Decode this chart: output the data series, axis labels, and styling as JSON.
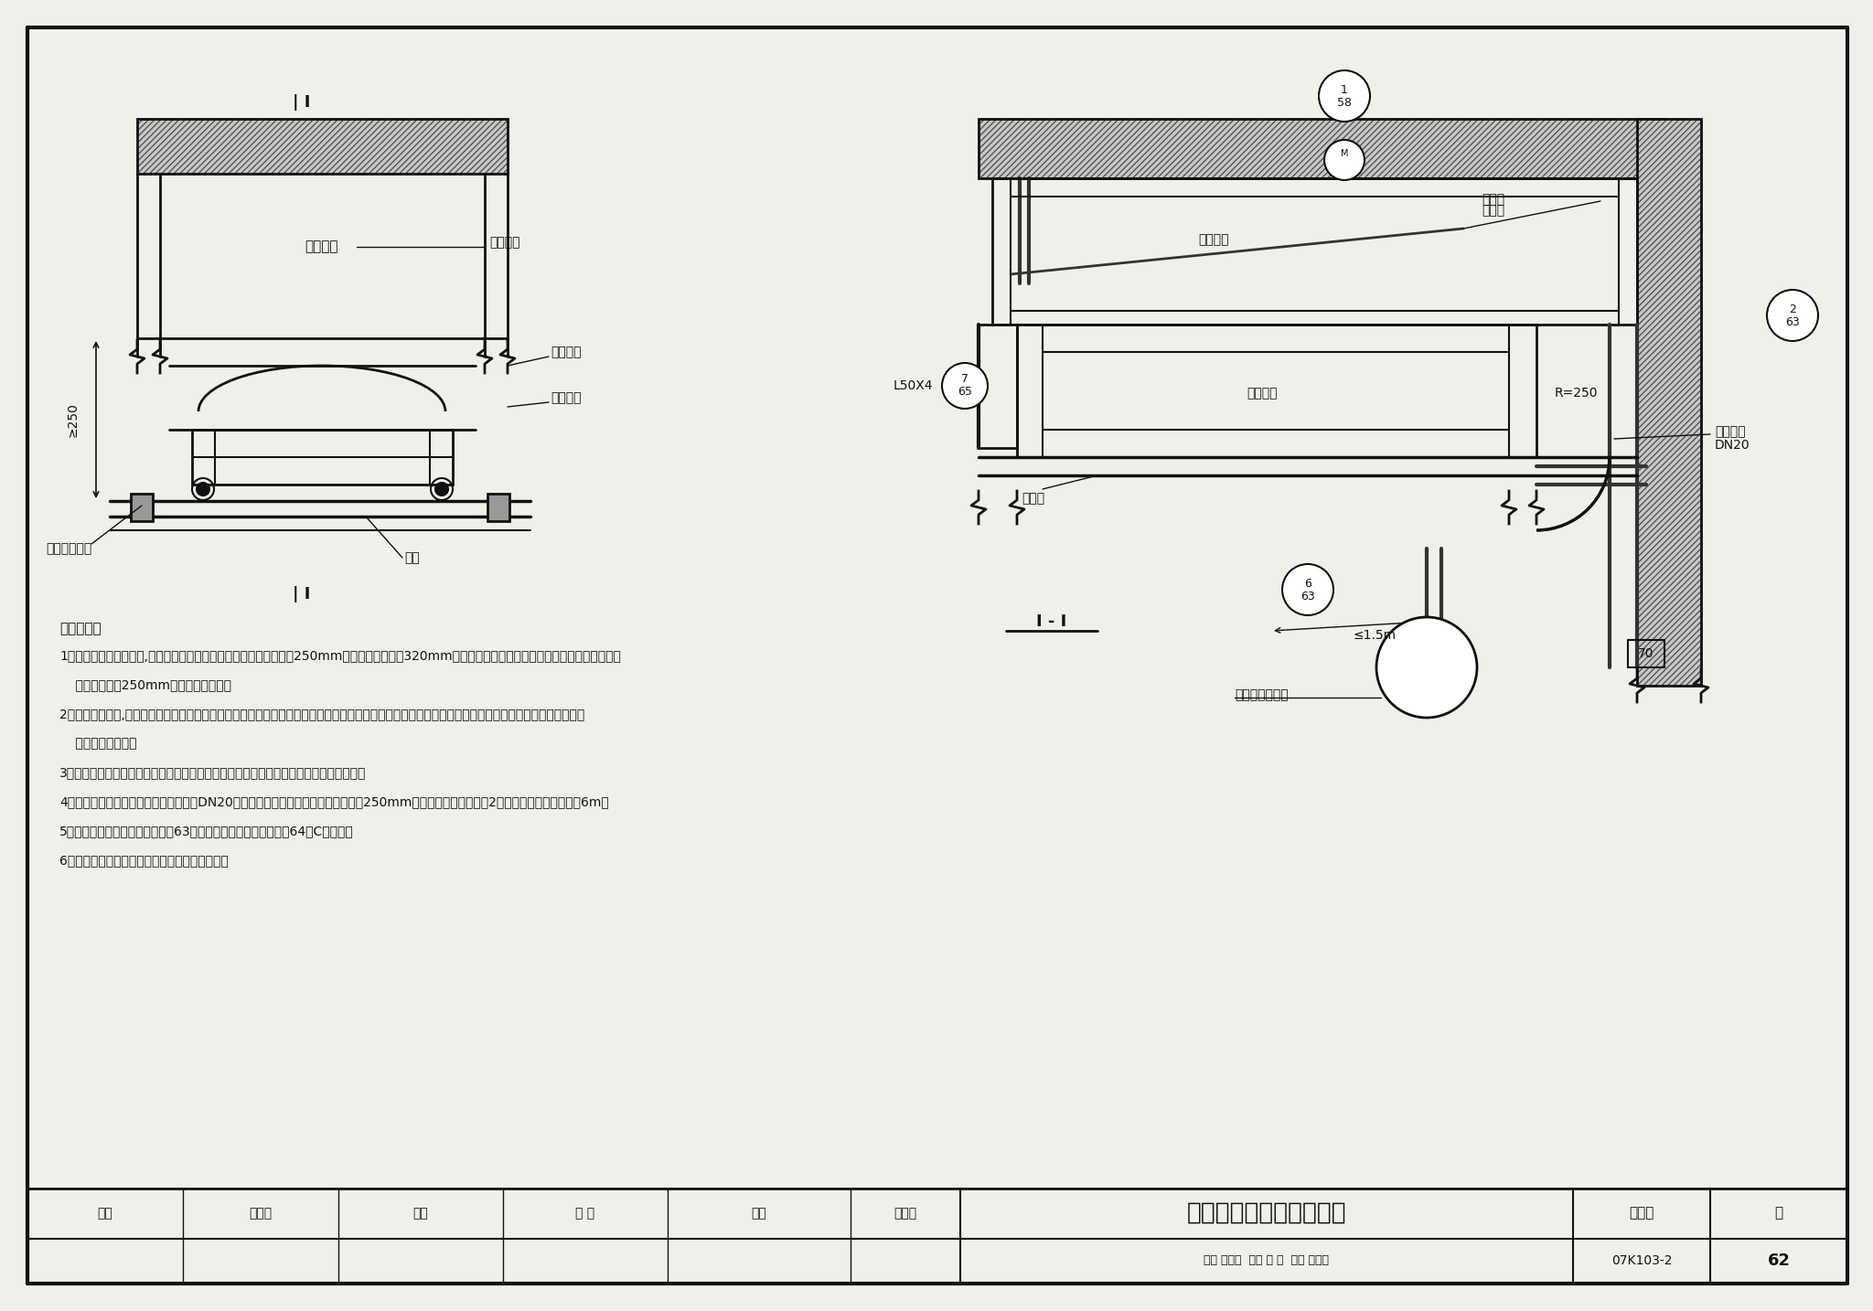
{
  "title": "排烟口吊顶上安装（一）",
  "fig_num": "07K103-2",
  "page": "62",
  "bg_color": "#f0f0eb",
  "border_color": "#111111",
  "text_color": "#111111",
  "notes_title": "安装要点：",
  "note_lines": [
    "1．排烟口在吊顶安装时,排烟管道安装底标高距吊顶面的尺寸应大于250mm，",
    "    多叶排烟口大于320mm以上；安装多叶排烟口时，排烟短管的长度或垂直",
    "    方向上应增加250mm，以安装执行器。",
    "2．排烟口的安装,首先将排烟口的内法兰安装在短管内，定好位后用铆钉固定，",
    "    然后将排烟口装入短管内，用螺栓和螺母固定，也可用自攻螺钉把排烟口外",
    "    框固定在短管上。",
    "3．排烟口贴吊顶表面安装时，为了防止下垂，排烟管道与排烟口短管连接处用",
    "    吊杆固定。",
    "4．远控装置的电气接线及控制缆绳采用DN20套管，控制缆绳套管的弯曲半径",
    "    不小于250mm，弯曲数量一般不多于2处，缆绳长度一般不大于6m。",
    "5．排烟口在吊顶上布置详图见第63页大样，螺栓数量及布置见第64页C向视图。",
    "6．排烟口安装完半，控制机构性能应灵活可靠。"
  ],
  "title_block_title": "排烟口吊顶上安装（一）",
  "fig_label": "图集号",
  "page_label": "页",
  "tb_labels": [
    "审核",
    "傅建勋",
    "校对",
    "潘 菁",
    "设计",
    "陈英华"
  ]
}
